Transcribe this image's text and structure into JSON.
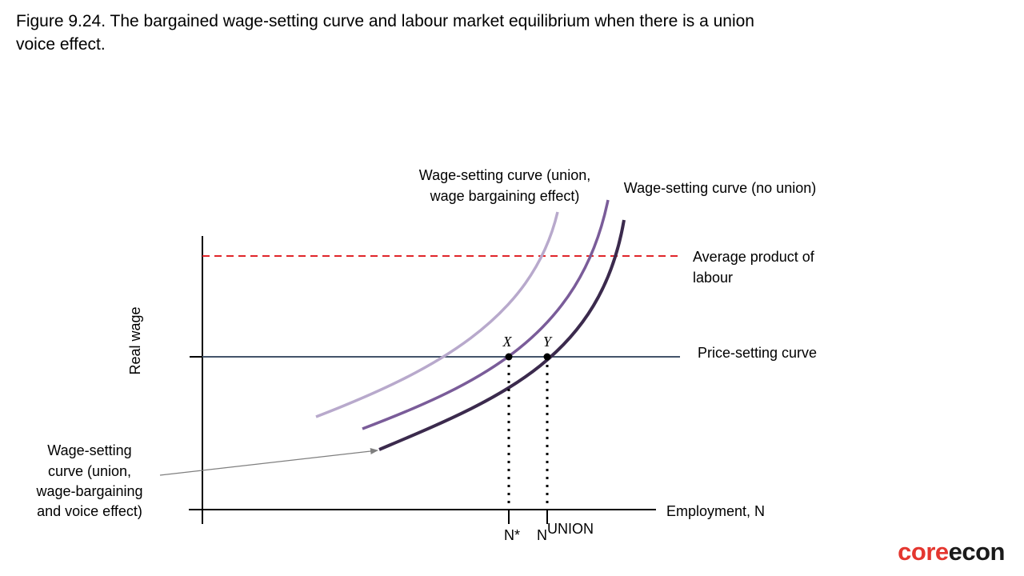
{
  "title": "Figure 9.24. The bargained wage-setting curve and labour market equilibrium when there is a union voice effect.",
  "axes": {
    "y_label": "Real wage",
    "x_label": "Employment, N"
  },
  "curves": {
    "ws_union_wage_bargaining": {
      "label_line1": "Wage-setting curve (union,",
      "label_line2": "wage bargaining effect)",
      "color": "#b8a9cc"
    },
    "ws_no_union": {
      "label": "Wage-setting curve (no union)",
      "color": "#7a5c99"
    },
    "ws_union_wage_bargaining_and_voice": {
      "label_lines": [
        "Wage-setting",
        "curve (union,",
        "wage-bargaining",
        "and voice effect)"
      ],
      "color": "#3b2a4d"
    },
    "average_product_of_labour": {
      "label_line1": "Average product of",
      "label_line2": "labour",
      "color": "#e0262b"
    },
    "price_setting_curve": {
      "label": "Price-setting curve",
      "color": "#44546a"
    }
  },
  "points": {
    "x": {
      "label": "X"
    },
    "y": {
      "label": "Y"
    }
  },
  "tick_labels": {
    "n_star": "N*",
    "n_union_base": "N",
    "n_union_sup": "UNION"
  },
  "logo": {
    "part1": "core",
    "part2": "econ",
    "color_core": "#e4362f",
    "color_econ": "#1a1a1a"
  }
}
